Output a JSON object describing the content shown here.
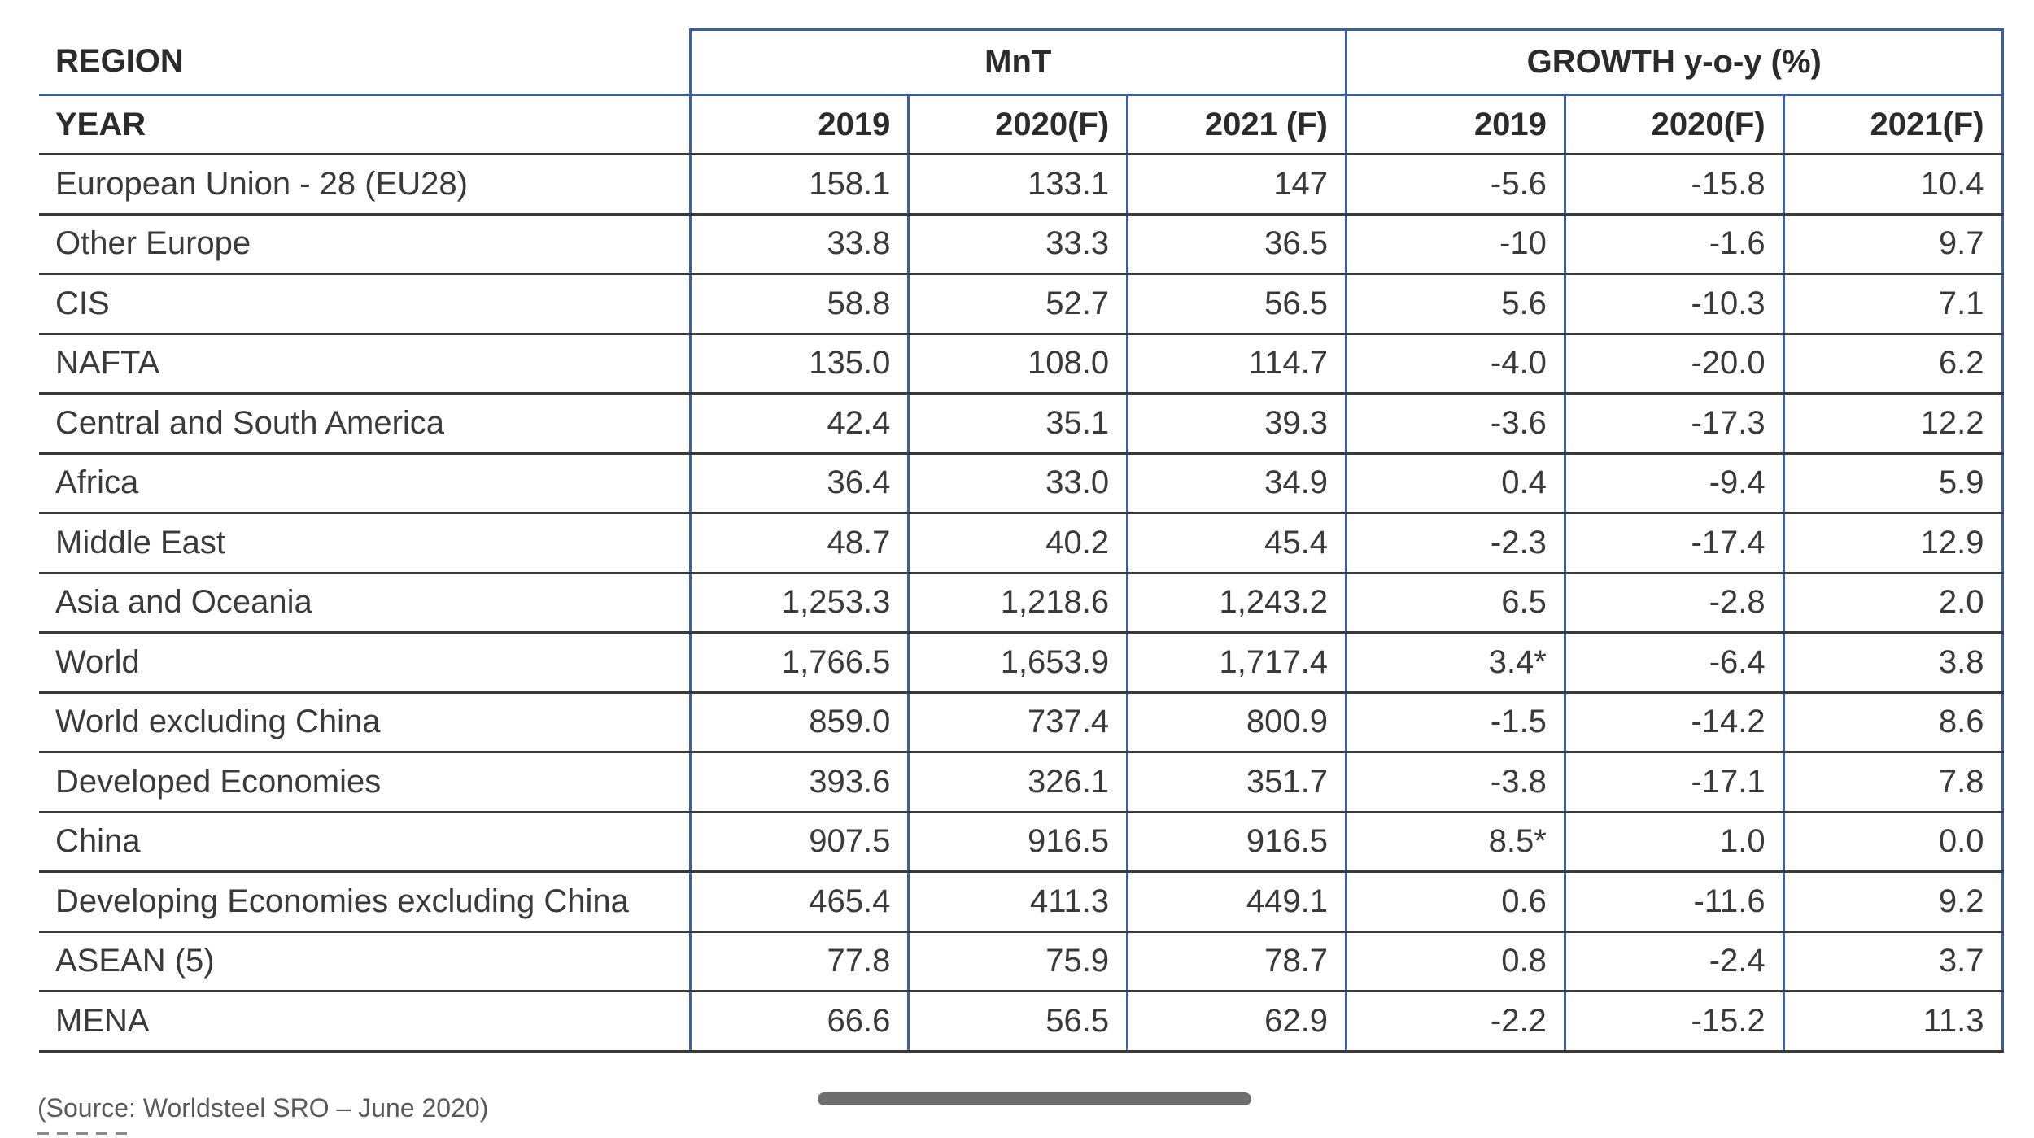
{
  "table": {
    "header": {
      "region_label": "REGION",
      "year_label": "YEAR",
      "group_mnt": "MnT",
      "group_growth": "GROWTH y-o-y (%)",
      "mnt_years": [
        "2019",
        "2020(F)",
        "2021 (F)"
      ],
      "growth_years": [
        "2019",
        "2020(F)",
        "2021(F)"
      ]
    },
    "rows": [
      {
        "region": "European Union - 28 (EU28)",
        "v": [
          "158.1",
          "133.1",
          "147",
          "-5.6",
          "-15.8",
          "10.4"
        ]
      },
      {
        "region": "Other Europe",
        "v": [
          "33.8",
          "33.3",
          "36.5",
          "-10",
          "-1.6",
          "9.7"
        ]
      },
      {
        "region": "CIS",
        "v": [
          "58.8",
          "52.7",
          "56.5",
          "5.6",
          "-10.3",
          "7.1"
        ]
      },
      {
        "region": "NAFTA",
        "v": [
          "135.0",
          "108.0",
          "114.7",
          "-4.0",
          "-20.0",
          "6.2"
        ]
      },
      {
        "region": "Central and South America",
        "v": [
          "42.4",
          "35.1",
          "39.3",
          "-3.6",
          "-17.3",
          "12.2"
        ]
      },
      {
        "region": "Africa",
        "v": [
          "36.4",
          "33.0",
          "34.9",
          "0.4",
          "-9.4",
          "5.9"
        ]
      },
      {
        "region": "Middle East",
        "v": [
          "48.7",
          "40.2",
          "45.4",
          "-2.3",
          "-17.4",
          "12.9"
        ]
      },
      {
        "region": "Asia and Oceania",
        "v": [
          "1,253.3",
          "1,218.6",
          "1,243.2",
          "6.5",
          "-2.8",
          "2.0"
        ]
      },
      {
        "region": "World",
        "v": [
          "1,766.5",
          "1,653.9",
          "1,717.4",
          "3.4*",
          "-6.4",
          "3.8"
        ]
      },
      {
        "region": "World excluding China",
        "v": [
          "859.0",
          "737.4",
          "800.9",
          "-1.5",
          "-14.2",
          "8.6"
        ]
      },
      {
        "region": "Developed Economies",
        "v": [
          "393.6",
          "326.1",
          "351.7",
          "-3.8",
          "-17.1",
          "7.8"
        ]
      },
      {
        "region": "China",
        "v": [
          "907.5",
          "916.5",
          "916.5",
          "8.5*",
          "1.0",
          "0.0"
        ]
      },
      {
        "region": "Developing Economies excluding China",
        "v": [
          "465.4",
          "411.3",
          "449.1",
          "0.6",
          "-11.6",
          "9.2"
        ]
      },
      {
        "region": "ASEAN (5)",
        "v": [
          "77.8",
          "75.9",
          "78.7",
          "0.8",
          "-2.4",
          "3.7"
        ]
      },
      {
        "region": "MENA",
        "v": [
          "66.6",
          "56.5",
          "62.9",
          "-2.2",
          "-15.2",
          "11.3"
        ]
      }
    ]
  },
  "source_note": "(Source: Worldsteel SRO – June 2020)"
}
